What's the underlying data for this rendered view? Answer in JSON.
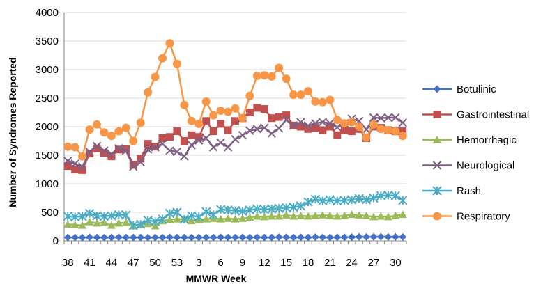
{
  "chart_data": {
    "type": "line",
    "title": "",
    "xlabel": "MMWR Week",
    "ylabel": "Number of Syndromes Reported",
    "ylim": [
      0,
      4000
    ],
    "yticks": [
      0,
      500,
      1000,
      1500,
      2000,
      2500,
      3000,
      3500,
      4000
    ],
    "xtick_labels": [
      "38",
      "41",
      "44",
      "47",
      "50",
      "53",
      "3",
      "6",
      "9",
      "12",
      "15",
      "18",
      "21",
      "24",
      "27",
      "30"
    ],
    "grid": "horizontal",
    "legend_position": "right",
    "x": [
      "38",
      "39",
      "40",
      "41",
      "42",
      "43",
      "44",
      "45",
      "46",
      "47",
      "48",
      "49",
      "50",
      "51",
      "52",
      "53",
      "1",
      "2",
      "3",
      "4",
      "5",
      "6",
      "7",
      "8",
      "9",
      "10",
      "11",
      "12",
      "13",
      "14",
      "15",
      "16",
      "17",
      "18",
      "19",
      "20",
      "21",
      "22",
      "23",
      "24",
      "25",
      "26",
      "27",
      "28",
      "29",
      "30",
      "31"
    ],
    "series": [
      {
        "name": "Botulinic",
        "color": "#4472C4",
        "marker": "diamond",
        "values": [
          60,
          60,
          58,
          62,
          60,
          58,
          60,
          62,
          60,
          60,
          60,
          58,
          60,
          60,
          62,
          60,
          60,
          58,
          60,
          60,
          60,
          62,
          60,
          60,
          62,
          60,
          62,
          60,
          60,
          65,
          62,
          60,
          62,
          60,
          65,
          62,
          60,
          62,
          62,
          65,
          70,
          68,
          70,
          72,
          68,
          70,
          68
        ]
      },
      {
        "name": "Gastrointestinal",
        "color": "#C0504D",
        "marker": "square",
        "values": [
          1310,
          1250,
          1240,
          1530,
          1620,
          1540,
          1480,
          1600,
          1610,
          1330,
          1440,
          1700,
          1650,
          1800,
          1820,
          1920,
          1750,
          1850,
          1820,
          2100,
          1920,
          2050,
          1940,
          2100,
          2150,
          2250,
          2330,
          2310,
          2150,
          2170,
          2200,
          2020,
          2000,
          1960,
          1980,
          1940,
          2000,
          1850,
          1940,
          1920,
          1960,
          1800,
          2000,
          1980,
          1940,
          1920,
          1920
        ]
      },
      {
        "name": "Hemorrhagic",
        "color": "#9BBB59",
        "marker": "triangle",
        "values": [
          290,
          280,
          270,
          330,
          310,
          320,
          270,
          310,
          320,
          260,
          280,
          300,
          260,
          350,
          370,
          380,
          380,
          350,
          370,
          380,
          390,
          380,
          390,
          380,
          390,
          410,
          430,
          420,
          430,
          430,
          450,
          430,
          440,
          430,
          440,
          450,
          440,
          430,
          440,
          460,
          450,
          440,
          420,
          430,
          420,
          440,
          460
        ]
      },
      {
        "name": "Neurological",
        "color": "#7F6084",
        "marker": "x",
        "values": [
          1400,
          1350,
          1300,
          1560,
          1660,
          1580,
          1520,
          1620,
          1580,
          1300,
          1380,
          1600,
          1640,
          1700,
          1580,
          1560,
          1480,
          1680,
          1760,
          1800,
          1640,
          1720,
          1640,
          1780,
          1850,
          1930,
          1960,
          1980,
          1880,
          1970,
          2120,
          2020,
          2080,
          2020,
          2060,
          2080,
          2060,
          1990,
          2060,
          2140,
          2100,
          1950,
          2160,
          2150,
          2160,
          2160,
          2070
        ]
      },
      {
        "name": "Rash",
        "color": "#4BACC6",
        "marker": "asterisk",
        "values": [
          430,
          420,
          430,
          480,
          440,
          430,
          440,
          460,
          450,
          270,
          290,
          360,
          340,
          380,
          480,
          500,
          380,
          440,
          420,
          510,
          460,
          550,
          540,
          530,
          520,
          540,
          560,
          550,
          560,
          570,
          580,
          590,
          610,
          680,
          730,
          700,
          720,
          700,
          710,
          720,
          740,
          720,
          750,
          790,
          800,
          790,
          710
        ]
      },
      {
        "name": "Respiratory",
        "color": "#F79646",
        "marker": "circle",
        "values": [
          1650,
          1640,
          1480,
          1950,
          2040,
          1900,
          1840,
          1920,
          1980,
          1750,
          2070,
          2600,
          2870,
          3200,
          3460,
          3100,
          2380,
          2100,
          2050,
          2440,
          2200,
          2280,
          2260,
          2320,
          2150,
          2540,
          2890,
          2900,
          2880,
          3030,
          2840,
          2560,
          2560,
          2620,
          2440,
          2430,
          2470,
          2120,
          2060,
          2080,
          2000,
          1810,
          2040,
          1960,
          1940,
          1920,
          1840
        ]
      }
    ]
  }
}
